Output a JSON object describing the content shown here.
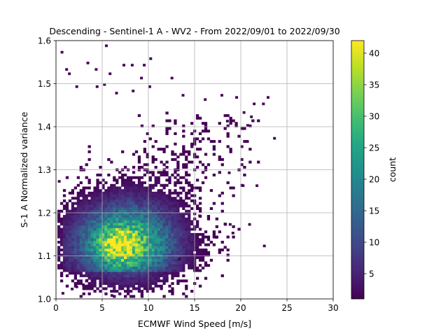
{
  "chart_data": {
    "type": "heatmap",
    "title": "Descending - Sentinel-1 A - WV2 - From 2022/09/01 to 2022/09/30",
    "xlabel": "ECMWF Wind Speed [m/s]",
    "ylabel": "S-1 A Normalized variance",
    "xlim": [
      0,
      30
    ],
    "ylim": [
      1.0,
      1.6
    ],
    "xticks": [
      "0",
      "5",
      "10",
      "15",
      "20",
      "25",
      "30"
    ],
    "yticks": [
      "1.0",
      "1.1",
      "1.2",
      "1.3",
      "1.4",
      "1.5",
      "1.6"
    ],
    "grid": true,
    "colormap": "viridis",
    "colorbar": {
      "label": "count",
      "min": 1,
      "max": 42,
      "ticks": [
        "5",
        "10",
        "15",
        "20",
        "25",
        "30",
        "35",
        "40"
      ]
    },
    "bins": {
      "x_width_ms": 0.3,
      "y_width": 0.006
    },
    "density_core": {
      "x": 7.5,
      "y": 1.125,
      "peak_count": 42
    },
    "secondary_peak": {
      "x": 6.6,
      "y": 1.12
    },
    "outlier_points": [
      [
        0.5,
        1.57
      ],
      [
        5.3,
        1.585
      ],
      [
        1.0,
        1.53
      ],
      [
        1.3,
        1.52
      ],
      [
        3.3,
        1.545
      ],
      [
        4.2,
        1.53
      ],
      [
        5.7,
        1.52
      ],
      [
        7.2,
        1.54
      ],
      [
        8.1,
        1.54
      ],
      [
        9.4,
        1.54
      ],
      [
        10.1,
        1.555
      ],
      [
        9.1,
        1.51
      ],
      [
        12.4,
        1.51
      ],
      [
        2.1,
        1.49
      ],
      [
        4.3,
        1.49
      ],
      [
        5.1,
        1.495
      ],
      [
        6.4,
        1.475
      ],
      [
        8.2,
        1.48
      ],
      [
        10.0,
        1.49
      ],
      [
        13.6,
        1.47
      ],
      [
        16.0,
        1.46
      ],
      [
        17.8,
        1.47
      ],
      [
        19.4,
        1.465
      ],
      [
        20.2,
        1.43
      ],
      [
        21.0,
        1.42
      ],
      [
        21.3,
        1.45
      ],
      [
        22.3,
        1.45
      ],
      [
        22.8,
        1.465
      ],
      [
        23.5,
        1.37
      ],
      [
        20.6,
        1.4
      ],
      [
        18.4,
        1.41
      ],
      [
        20.8,
        1.17
      ],
      [
        21.6,
        1.26
      ],
      [
        22.4,
        1.12
      ],
      [
        20.1,
        1.26
      ],
      [
        19.0,
        1.15
      ],
      [
        18.7,
        1.17
      ],
      [
        18.2,
        1.17
      ],
      [
        18.6,
        1.29
      ],
      [
        17.2,
        1.14
      ],
      [
        15.4,
        1.19
      ],
      [
        16.1,
        1.11
      ],
      [
        13.2,
        1.09
      ],
      [
        5.9,
        1.005
      ],
      [
        0.6,
        1.01
      ],
      [
        1.6,
        1.02
      ],
      [
        2.1,
        1.025
      ],
      [
        2.8,
        1.03
      ],
      [
        3.2,
        1.04
      ],
      [
        0.2,
        1.27
      ]
    ]
  }
}
